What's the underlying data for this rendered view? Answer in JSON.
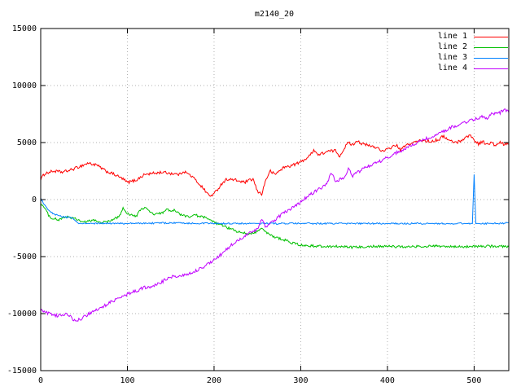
{
  "chart_data": {
    "type": "line",
    "title": "m2140_20",
    "xlabel": "",
    "ylabel": "",
    "xlim": [
      0,
      540
    ],
    "ylim": [
      -15000,
      15000
    ],
    "xticks": [
      0,
      100,
      200,
      300,
      400,
      500
    ],
    "yticks": [
      -15000,
      -10000,
      -5000,
      0,
      5000,
      10000,
      15000
    ],
    "grid": true,
    "legend_position": "top-right",
    "background_color": "#ffffff",
    "grid_color": "#b0b0b0",
    "border_color": "#000000",
    "series": [
      {
        "name": "line 1",
        "color": "#ff0000",
        "noise": 130,
        "points": [
          [
            0,
            1800
          ],
          [
            5,
            2300
          ],
          [
            15,
            2500
          ],
          [
            25,
            2400
          ],
          [
            35,
            2600
          ],
          [
            45,
            2900
          ],
          [
            55,
            3200
          ],
          [
            65,
            3000
          ],
          [
            75,
            2500
          ],
          [
            85,
            2200
          ],
          [
            95,
            1800
          ],
          [
            100,
            1500
          ],
          [
            110,
            1700
          ],
          [
            120,
            2200
          ],
          [
            130,
            2300
          ],
          [
            140,
            2400
          ],
          [
            150,
            2300
          ],
          [
            160,
            2200
          ],
          [
            165,
            2500
          ],
          [
            175,
            2000
          ],
          [
            185,
            1200
          ],
          [
            195,
            300
          ],
          [
            200,
            500
          ],
          [
            210,
            1500
          ],
          [
            215,
            1800
          ],
          [
            225,
            1700
          ],
          [
            235,
            1500
          ],
          [
            245,
            1800
          ],
          [
            250,
            700
          ],
          [
            255,
            500
          ],
          [
            260,
            1800
          ],
          [
            265,
            2500
          ],
          [
            270,
            2200
          ],
          [
            280,
            2800
          ],
          [
            290,
            3000
          ],
          [
            300,
            3300
          ],
          [
            310,
            3800
          ],
          [
            315,
            4400
          ],
          [
            320,
            3900
          ],
          [
            330,
            4200
          ],
          [
            340,
            4300
          ],
          [
            345,
            3800
          ],
          [
            350,
            4500
          ],
          [
            355,
            5000
          ],
          [
            360,
            4800
          ],
          [
            365,
            5200
          ],
          [
            370,
            4900
          ],
          [
            380,
            4700
          ],
          [
            390,
            4500
          ],
          [
            395,
            4200
          ],
          [
            400,
            4400
          ],
          [
            410,
            4800
          ],
          [
            415,
            4300
          ],
          [
            420,
            4700
          ],
          [
            430,
            5000
          ],
          [
            440,
            5200
          ],
          [
            450,
            5100
          ],
          [
            460,
            5300
          ],
          [
            465,
            5600
          ],
          [
            470,
            5200
          ],
          [
            480,
            5000
          ],
          [
            490,
            5400
          ],
          [
            495,
            5700
          ],
          [
            500,
            5200
          ],
          [
            505,
            4900
          ],
          [
            510,
            5100
          ],
          [
            515,
            4800
          ],
          [
            520,
            5000
          ],
          [
            525,
            4700
          ],
          [
            530,
            5000
          ],
          [
            535,
            4800
          ],
          [
            540,
            4900
          ]
        ]
      },
      {
        "name": "line 2",
        "color": "#00c000",
        "noise": 110,
        "points": [
          [
            0,
            -300
          ],
          [
            5,
            -800
          ],
          [
            10,
            -1500
          ],
          [
            20,
            -1800
          ],
          [
            30,
            -1500
          ],
          [
            40,
            -1700
          ],
          [
            50,
            -2000
          ],
          [
            60,
            -1800
          ],
          [
            70,
            -2000
          ],
          [
            80,
            -1900
          ],
          [
            90,
            -1500
          ],
          [
            95,
            -800
          ],
          [
            100,
            -1200
          ],
          [
            110,
            -1500
          ],
          [
            115,
            -900
          ],
          [
            120,
            -700
          ],
          [
            130,
            -1300
          ],
          [
            140,
            -1200
          ],
          [
            145,
            -800
          ],
          [
            150,
            -1100
          ],
          [
            155,
            -900
          ],
          [
            160,
            -1300
          ],
          [
            170,
            -1500
          ],
          [
            180,
            -1400
          ],
          [
            190,
            -1600
          ],
          [
            200,
            -2000
          ],
          [
            210,
            -2300
          ],
          [
            220,
            -2600
          ],
          [
            230,
            -2900
          ],
          [
            240,
            -3000
          ],
          [
            250,
            -2800
          ],
          [
            255,
            -2500
          ],
          [
            260,
            -2900
          ],
          [
            270,
            -3300
          ],
          [
            280,
            -3500
          ],
          [
            290,
            -3800
          ],
          [
            300,
            -4000
          ],
          [
            320,
            -4100
          ],
          [
            340,
            -4100
          ],
          [
            360,
            -4200
          ],
          [
            380,
            -4100
          ],
          [
            400,
            -4100
          ],
          [
            420,
            -4150
          ],
          [
            440,
            -4100
          ],
          [
            460,
            -4100
          ],
          [
            480,
            -4150
          ],
          [
            500,
            -4100
          ],
          [
            520,
            -4100
          ],
          [
            540,
            -4100
          ]
        ]
      },
      {
        "name": "line 3",
        "color": "#0080ff",
        "noise": 70,
        "points": [
          [
            0,
            100
          ],
          [
            3,
            -300
          ],
          [
            8,
            -900
          ],
          [
            15,
            -1300
          ],
          [
            25,
            -1500
          ],
          [
            35,
            -1600
          ],
          [
            45,
            -2100
          ],
          [
            55,
            -2100
          ],
          [
            100,
            -2100
          ],
          [
            150,
            -2050
          ],
          [
            200,
            -2100
          ],
          [
            250,
            -2100
          ],
          [
            300,
            -2100
          ],
          [
            350,
            -2100
          ],
          [
            400,
            -2100
          ],
          [
            450,
            -2100
          ],
          [
            490,
            -2100
          ],
          [
            498,
            -2100
          ],
          [
            500,
            2200
          ],
          [
            502,
            -2100
          ],
          [
            520,
            -2100
          ],
          [
            540,
            -2050
          ]
        ]
      },
      {
        "name": "line 4",
        "color": "#c000ff",
        "noise": 140,
        "points": [
          [
            0,
            -9700
          ],
          [
            10,
            -10000
          ],
          [
            20,
            -10200
          ],
          [
            30,
            -10000
          ],
          [
            40,
            -10700
          ],
          [
            50,
            -10300
          ],
          [
            60,
            -9800
          ],
          [
            70,
            -9500
          ],
          [
            80,
            -9000
          ],
          [
            90,
            -8700
          ],
          [
            100,
            -8300
          ],
          [
            110,
            -8000
          ],
          [
            120,
            -7700
          ],
          [
            130,
            -7600
          ],
          [
            140,
            -7200
          ],
          [
            150,
            -6800
          ],
          [
            160,
            -6700
          ],
          [
            170,
            -6500
          ],
          [
            180,
            -6200
          ],
          [
            190,
            -5800
          ],
          [
            200,
            -5300
          ],
          [
            210,
            -4700
          ],
          [
            220,
            -4000
          ],
          [
            230,
            -3500
          ],
          [
            240,
            -3000
          ],
          [
            250,
            -2600
          ],
          [
            255,
            -1800
          ],
          [
            260,
            -2400
          ],
          [
            270,
            -1800
          ],
          [
            280,
            -1200
          ],
          [
            290,
            -700
          ],
          [
            300,
            -200
          ],
          [
            310,
            400
          ],
          [
            320,
            900
          ],
          [
            330,
            1300
          ],
          [
            335,
            2400
          ],
          [
            340,
            1600
          ],
          [
            350,
            1900
          ],
          [
            355,
            2700
          ],
          [
            360,
            2100
          ],
          [
            370,
            2600
          ],
          [
            380,
            3000
          ],
          [
            390,
            3300
          ],
          [
            400,
            3700
          ],
          [
            410,
            4100
          ],
          [
            420,
            4400
          ],
          [
            430,
            4800
          ],
          [
            440,
            5200
          ],
          [
            450,
            5500
          ],
          [
            460,
            5800
          ],
          [
            470,
            6200
          ],
          [
            480,
            6500
          ],
          [
            490,
            6800
          ],
          [
            500,
            7000
          ],
          [
            510,
            7300
          ],
          [
            515,
            7000
          ],
          [
            520,
            7500
          ],
          [
            530,
            7600
          ],
          [
            535,
            7900
          ],
          [
            540,
            7700
          ]
        ]
      }
    ]
  }
}
